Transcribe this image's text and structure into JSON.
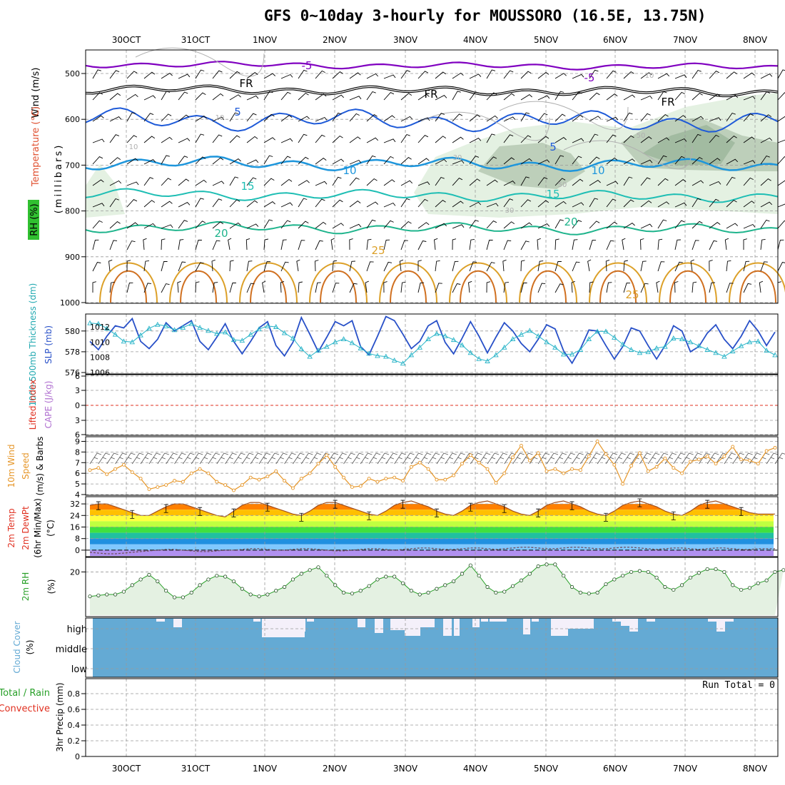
{
  "title": "GFS 0~10day 3-hourly for MOUSSORO (16.5E, 13.75N)",
  "dates": [
    "30OCT",
    "31OCT",
    "1NOV",
    "2NOV",
    "3NOV",
    "4NOV",
    "5NOV",
    "6NOV",
    "7NOV",
    "8NOV"
  ],
  "colors": {
    "frame": "#000000",
    "grid": "#999999",
    "rh_fill_light": "#e4f1e2",
    "rh_fill_dark": "#9bb59b",
    "cloud": "#64aad4",
    "temp_purple": "#8000c0",
    "temp_black": "#000000",
    "temp_blue": "#1e5ad8",
    "temp_lightblue": "#1e96dc",
    "temp_cyan": "#1ebeb4",
    "temp_green": "#1eb48c",
    "temp_orange": "#dca028",
    "thickness": "#2850c8",
    "slp": "#28b4c8",
    "wind": "#e69628",
    "rh2m": "#28a028"
  },
  "panels": {
    "upper": {
      "ylabel_wind": "Wind (m/s)",
      "ylabel_temp": "Temperature (°C)",
      "ylabel_rh": "RH (%)",
      "ylabel_mb": "(millibars)",
      "yticks": [
        "500",
        "600",
        "700",
        "800",
        "900",
        "1000"
      ],
      "contour_labels": [
        "-5",
        "-5",
        "FR",
        "FR",
        "FR",
        "5",
        "5",
        "10",
        "10",
        "15",
        "15",
        "20",
        "20",
        "25",
        "25",
        "10",
        "10",
        "50",
        "50",
        "30",
        "30",
        "10"
      ]
    },
    "thickness": {
      "ylabel_thick": "1000-500mb Thickness (dm)",
      "ylabel_slp": "SLP (mb)",
      "yticks_left": [
        "580",
        "578",
        "576"
      ],
      "yticks_right": [
        "1012",
        "1010",
        "1008",
        "1006"
      ]
    },
    "cape": {
      "ylabel_li": "Lifted Index",
      "ylabel_cape": "CAPE (J/kg)",
      "yticks": [
        "6",
        "3",
        "0",
        "3",
        "6"
      ]
    },
    "wind": {
      "ylabel_1": "10m Wind",
      "ylabel_2": "Speed",
      "ylabel_3": "(m/s) & Barbs",
      "yticks": [
        "9",
        "8",
        "7",
        "6",
        "5",
        "4"
      ]
    },
    "temp": {
      "ylabel_1": "2m Temp",
      "ylabel_2": "2m DewPt",
      "ylabel_3": "(6hr Min/Max)",
      "ylabel_4": "(°C)",
      "yticks": [
        "32",
        "24",
        "16",
        "8",
        "0"
      ]
    },
    "rh": {
      "ylabel_1": "2m RH",
      "ylabel_2": "(%)",
      "yticks": [
        "20"
      ]
    },
    "cloud": {
      "ylabel_1": "Cloud Cover",
      "ylabel_2": "(%)",
      "levels": [
        "high",
        "middle",
        "low"
      ]
    },
    "precip": {
      "ylabel_1": "Total / Rain",
      "ylabel_2": "Convective",
      "ylabel_3": "3hr Precip (mm)",
      "yticks": [
        "0.8",
        "0.6",
        "0.4",
        "0.2",
        "0"
      ],
      "run_total": "Run Total = 0"
    }
  },
  "chart_data": [
    {
      "type": "line",
      "title": "1000-500mb Thickness (dm) / SLP (mb)",
      "series": [
        {
          "name": "1000-500mb Thickness (dm)",
          "values": [
            579.0,
            578.2,
            579.5,
            580.5,
            580.3,
            581.2,
            579.0,
            578.3,
            579.2,
            580.8,
            580.0,
            580.5,
            581.0,
            579.0,
            578.2,
            579.4,
            580.7,
            579.0,
            577.8,
            579.0,
            580.3,
            580.9,
            578.6,
            577.6,
            578.9,
            581.3,
            579.7,
            578.0,
            579.4,
            580.9,
            580.5,
            581.0,
            578.5,
            577.7,
            579.5,
            581.4,
            581.0,
            579.7,
            578.3,
            579.0,
            580.5,
            581.0,
            578.9,
            577.8,
            579.3,
            580.9,
            579.5,
            577.9,
            579.4,
            580.8,
            580.0,
            578.8,
            578.0,
            579.2,
            580.6,
            580.2,
            578.1,
            576.9,
            578.3,
            580.1,
            580.0,
            578.6,
            577.3,
            578.5,
            580.3,
            580.0,
            578.6,
            577.3,
            578.6,
            580.5,
            580.0,
            578.0,
            578.5,
            579.8,
            580.6,
            579.2,
            578.3,
            579.5,
            581.0,
            580.0,
            578.6,
            579.9
          ]
        },
        {
          "name": "SLP (mb)",
          "values": [
            1012.5,
            1012.4,
            1011.8,
            1011.0,
            1010.1,
            1010.0,
            1010.9,
            1011.8,
            1012.3,
            1012.1,
            1011.6,
            1011.9,
            1012.4,
            1011.9,
            1011.5,
            1011.1,
            1011.3,
            1010.3,
            1010.2,
            1011.0,
            1011.7,
            1012.1,
            1012.0,
            1011.2,
            1010.5,
            1009.1,
            1008.1,
            1008.9,
            1009.4,
            1010.0,
            1010.4,
            1009.9,
            1009.2,
            1008.5,
            1008.2,
            1008.1,
            1007.6,
            1007.2,
            1008.3,
            1009.3,
            1010.4,
            1011.1,
            1010.8,
            1010.3,
            1009.6,
            1008.6,
            1007.8,
            1007.5,
            1008.3,
            1009.3,
            1010.4,
            1011.0,
            1011.5,
            1010.8,
            1010.0,
            1009.3,
            1008.4,
            1008.4,
            1009.0,
            1010.4,
            1011.4,
            1011.4,
            1010.6,
            1009.7,
            1009.0,
            1008.6,
            1008.7,
            1009.2,
            1009.4,
            1010.5,
            1010.4,
            1010.0,
            1009.5,
            1009.0,
            1008.6,
            1008.1,
            1008.8,
            1009.5,
            1010.0,
            1010.1,
            1008.9,
            1008.3
          ]
        }
      ],
      "ylim_left": [
        576,
        581.5
      ],
      "ylim_right": [
        1006,
        1013.5
      ]
    },
    {
      "type": "line",
      "title": "10m Wind Speed (m/s) & Barbs",
      "series": [
        {
          "name": "10m Wind Speed (m/s)",
          "values": [
            6.3,
            6.5,
            5.9,
            6.4,
            6.8,
            6.1,
            5.5,
            4.5,
            4.7,
            4.9,
            5.3,
            5.2,
            6.0,
            6.4,
            6.0,
            5.2,
            4.9,
            4.4,
            4.9,
            5.6,
            5.4,
            5.7,
            6.2,
            5.3,
            4.6,
            5.5,
            6.0,
            6.9,
            7.7,
            6.6,
            5.6,
            4.7,
            4.8,
            5.5,
            5.2,
            5.5,
            5.6,
            5.3,
            6.6,
            7.0,
            6.4,
            5.4,
            5.4,
            5.8,
            6.9,
            7.7,
            7.0,
            6.4,
            5.1,
            6.0,
            7.5,
            8.6,
            7.2,
            7.9,
            6.2,
            6.4,
            6.0,
            6.4,
            6.3,
            7.6,
            9.0,
            7.8,
            6.8,
            5.0,
            6.7,
            7.9,
            6.2,
            6.6,
            7.4,
            6.5,
            6.0,
            7.1,
            7.3,
            7.6,
            6.9,
            7.6,
            8.5,
            7.3,
            7.2,
            6.9,
            8.1,
            8.4
          ]
        }
      ],
      "ylim": [
        4,
        9.3
      ]
    },
    {
      "type": "area",
      "title": "2m Temp (°C) 6hr Min/Max",
      "series": [
        {
          "name": "2m Temp (°C)",
          "values": [
            31,
            32,
            32,
            30,
            28,
            26,
            24,
            24,
            27,
            30,
            32,
            32,
            30,
            28,
            26,
            24,
            23,
            27,
            31,
            33,
            33,
            31,
            29,
            27,
            25,
            24,
            27,
            31,
            33,
            33,
            31,
            29,
            27,
            25,
            24,
            27,
            31,
            33,
            34,
            32,
            30,
            27,
            25,
            24,
            27,
            31,
            33,
            34,
            32,
            30,
            27,
            25,
            24,
            27,
            31,
            33,
            34,
            32,
            30,
            27,
            25,
            24,
            27,
            31,
            33,
            34,
            32,
            30,
            27,
            25,
            24,
            27,
            31,
            33,
            34,
            32,
            30,
            28,
            26,
            25,
            25,
            25
          ]
        },
        {
          "name": "2m DewPt (°C)",
          "values": [
            -1.5,
            -2,
            -2.5,
            -2.5,
            -2,
            -1.5,
            -1,
            -0.5,
            0,
            0.5,
            0.5,
            0,
            -0.5,
            -1,
            -1,
            -0.5,
            0,
            0,
            0.5,
            1,
            1,
            0.5,
            0,
            0,
            0.5,
            1,
            1,
            0.5,
            0,
            -0.5,
            -0.5,
            0,
            0.5,
            1,
            1,
            0.5,
            0,
            0.5,
            1,
            1.5,
            1.5,
            1,
            0.5,
            0.5,
            1,
            1.5,
            1.5,
            1,
            0.5,
            1,
            1.5,
            2,
            2,
            1.5,
            1,
            1,
            1.5,
            2,
            2,
            1.5,
            1,
            1,
            1.5,
            2,
            2,
            1.5,
            1,
            0.5,
            1,
            1.5,
            1.5,
            1,
            0.5,
            1,
            1.5,
            1.5,
            1,
            0.5,
            0.5,
            1,
            1,
            1
          ]
        }
      ],
      "ylim": [
        -4,
        36
      ]
    },
    {
      "type": "area",
      "title": "2m RH (%)",
      "series": [
        {
          "name": "2m RH (%)",
          "values": [
            7,
            7.5,
            8,
            8,
            9.5,
            13,
            16,
            18.5,
            15,
            10,
            6.5,
            6.5,
            9,
            13,
            16,
            18,
            17.5,
            15,
            11,
            8,
            7,
            8,
            10,
            12,
            16,
            19,
            21,
            22.5,
            18,
            13,
            9,
            8.5,
            10,
            12.5,
            16,
            17.5,
            17.5,
            14,
            10,
            8,
            9,
            11,
            13,
            15,
            19,
            23.5,
            18,
            12,
            9,
            9.5,
            12.5,
            15.5,
            19,
            23,
            24,
            24,
            18,
            12,
            9,
            8.5,
            9,
            13.5,
            16,
            18,
            20,
            20.5,
            20,
            17,
            12,
            10.5,
            13,
            17,
            19.5,
            21.5,
            21.5,
            20,
            13,
            10.5,
            11.5,
            14,
            15.5,
            20,
            21
          ]
        }
      ],
      "ylim": [
        -3,
        27
      ]
    }
  ]
}
